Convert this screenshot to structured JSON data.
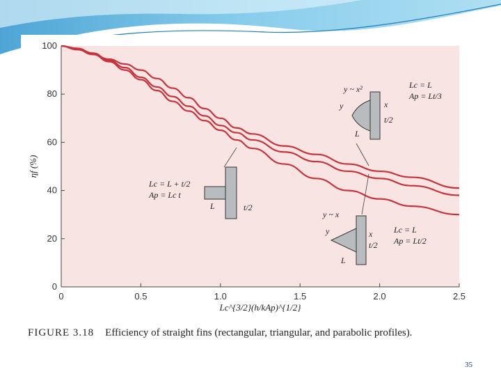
{
  "slide": {
    "page_number": "35",
    "caption_label": "FIGURE 3.18",
    "caption_text": "Efficiency of straight fins (rectangular, triangular, and parabolic profiles)."
  },
  "colors": {
    "curve": "#c8333b",
    "plot_background": "#f8e4e2",
    "banner_dark": "#2f8fc4",
    "banner_light": "#8fd0ec"
  },
  "chart_data": {
    "type": "line",
    "title": "",
    "xlabel": "Lc^{3/2}(h/kAp)^{1/2}",
    "ylabel": "ηf (%)",
    "xlim": [
      0,
      2.5
    ],
    "ylim": [
      0,
      100
    ],
    "xticks": [
      "0",
      "0.5",
      "1.0",
      "1.5",
      "2.0",
      "2.5"
    ],
    "yticks": [
      "0",
      "20",
      "40",
      "60",
      "80",
      "100"
    ],
    "grid": false,
    "series": [
      {
        "x": [
          0,
          0.1,
          0.2,
          0.3,
          0.4,
          0.5,
          0.6,
          0.7,
          0.8,
          0.9,
          1.0,
          1.1,
          1.2,
          1.4,
          1.6,
          1.8,
          2.0,
          2.2,
          2.5
        ],
        "values": [
          100,
          99,
          97,
          94,
          91,
          87,
          83,
          79,
          75,
          71,
          67,
          64,
          61,
          56,
          52,
          48,
          45,
          42,
          38
        ]
      },
      {
        "x": [
          0,
          0.1,
          0.2,
          0.3,
          0.4,
          0.5,
          0.6,
          0.7,
          0.8,
          0.9,
          1.0,
          1.1,
          1.2,
          1.4,
          1.6,
          1.8,
          2.0,
          2.2,
          2.5
        ],
        "values": [
          100,
          98.5,
          96.5,
          94.5,
          92.5,
          90,
          86.5,
          82.5,
          78.5,
          74,
          70,
          66,
          63.5,
          58.5,
          55,
          51,
          48,
          45.5,
          41
        ]
      },
      {
        "x": [
          0,
          0.1,
          0.2,
          0.3,
          0.4,
          0.5,
          0.6,
          0.7,
          0.8,
          0.9,
          1.0,
          1.1,
          1.2,
          1.4,
          1.6,
          1.8,
          2.0,
          2.2,
          2.5
        ],
        "values": [
          100,
          98.5,
          96.5,
          93.5,
          90,
          86,
          81.5,
          77,
          73,
          69,
          65,
          61,
          57.5,
          51,
          45,
          40,
          36.5,
          33.5,
          30
        ]
      }
    ],
    "annotations": {
      "rect_top": "Lc = L + t/2",
      "rect_bottom": "Ap = Lc t",
      "rect_L": "L",
      "rect_t": "t/2",
      "tri_curve": "y ~ x",
      "tri_top": "Lc = L",
      "tri_bottom": "Ap = Lt/2",
      "tri_y": "y",
      "tri_x": "x",
      "tri_t": "t/2",
      "tri_L": "L",
      "par_curve": "y ~ x²",
      "par_top": "Lc = L",
      "par_bottom": "Ap = Lt/3",
      "par_y": "y",
      "par_x": "x",
      "par_t": "t/2",
      "par_L": "L"
    }
  }
}
